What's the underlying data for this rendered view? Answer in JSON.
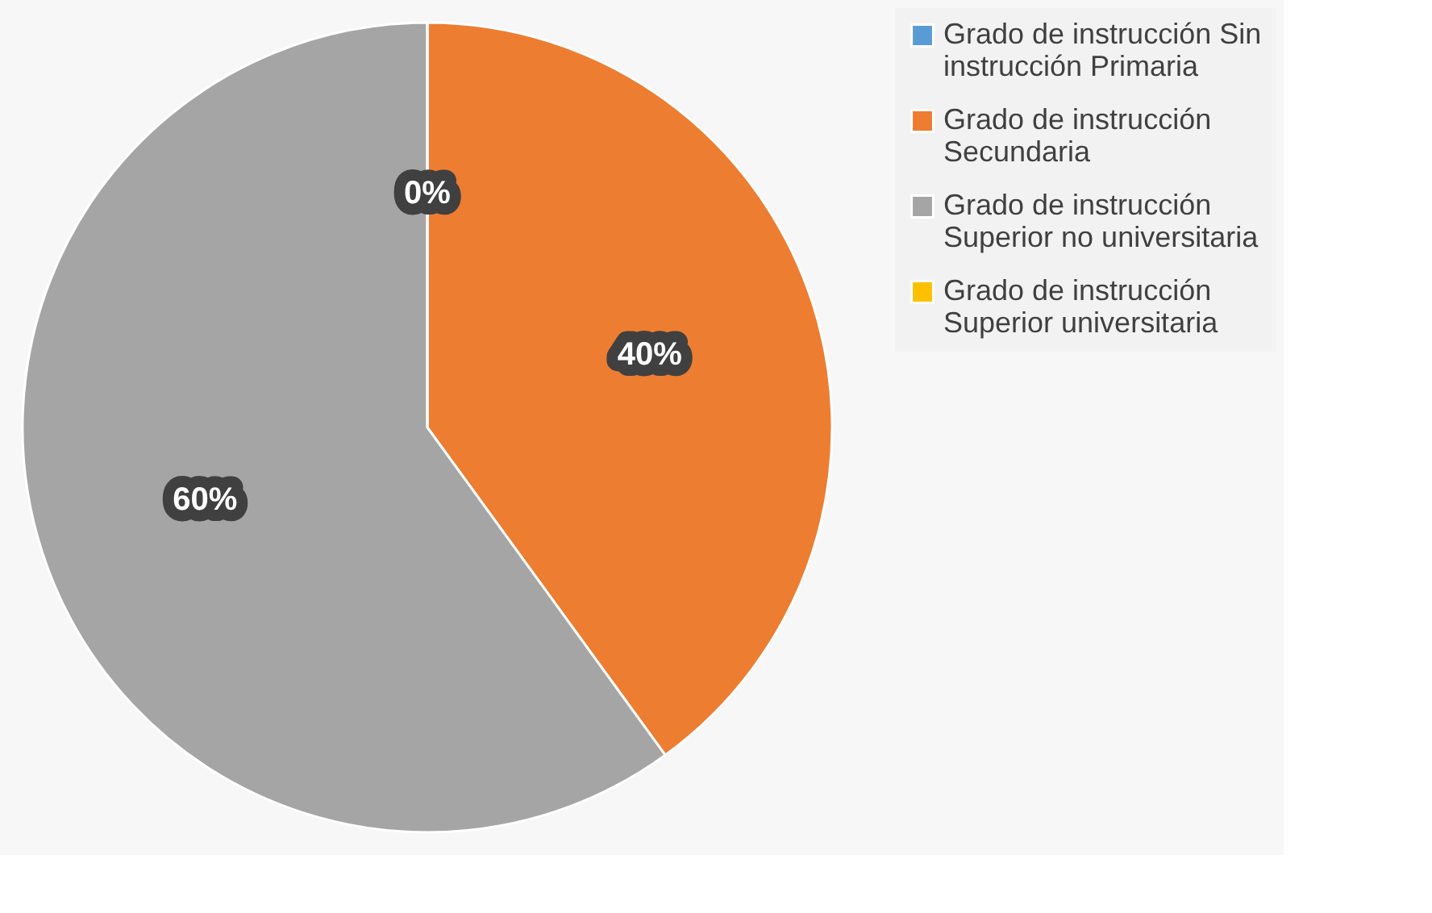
{
  "chart_data": {
    "type": "pie",
    "categories": [
      "Grado de instrucción Sin instrucción Primaria",
      "Grado de instrucción Secundaria",
      "Grado de instrucción Superior no universitaria",
      "Grado de instrucción Superior universitaria"
    ],
    "values": [
      0,
      40,
      60,
      0
    ],
    "colors": [
      "#5b9bd5",
      "#ed7d31",
      "#a5a5a5",
      "#ffc000"
    ],
    "value_labels": [
      "0%",
      "40%",
      "60%",
      null
    ],
    "legend": "right"
  }
}
